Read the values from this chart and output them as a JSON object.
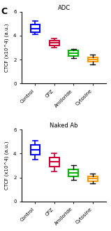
{
  "title_top": "ADC",
  "title_bottom": "Naked Ab",
  "panel_label": "C",
  "ylabel": "CTCF (x10^4) (a.u.)",
  "ylim": [
    0,
    6
  ],
  "yticks": [
    0,
    2,
    4,
    6
  ],
  "categories": [
    "Control",
    "CPZ",
    "Amiloride",
    "Cytosine"
  ],
  "colors": [
    "#0000FF",
    "#CC0033",
    "#00BB00",
    "#FF9900"
  ],
  "adc_boxes": {
    "Control": {
      "median": 4.6,
      "q1": 4.3,
      "q3": 4.95,
      "whislo": 4.1,
      "whishi": 5.2
    },
    "CPZ": {
      "median": 3.4,
      "q1": 3.2,
      "q3": 3.6,
      "whislo": 3.0,
      "whishi": 3.75
    },
    "Amiloride": {
      "median": 2.5,
      "q1": 2.3,
      "q3": 2.75,
      "whislo": 2.1,
      "whishi": 2.9
    },
    "Cytosine": {
      "median": 2.0,
      "q1": 1.8,
      "q3": 2.2,
      "whislo": 1.6,
      "whishi": 2.4
    }
  },
  "naked_boxes": {
    "Control": {
      "median": 4.3,
      "q1": 3.9,
      "q3": 4.7,
      "whislo": 3.5,
      "whishi": 5.1
    },
    "CPZ": {
      "median": 3.3,
      "q1": 2.9,
      "q3": 3.65,
      "whislo": 2.5,
      "whishi": 4.0
    },
    "Amiloride": {
      "median": 2.4,
      "q1": 2.1,
      "q3": 2.7,
      "whislo": 1.8,
      "whishi": 3.0
    },
    "Cytosine": {
      "median": 1.9,
      "q1": 1.7,
      "q3": 2.1,
      "whislo": 1.5,
      "whishi": 2.3
    }
  },
  "background_color": "#ffffff",
  "figsize": [
    1.59,
    3.3
  ],
  "dpi": 100
}
